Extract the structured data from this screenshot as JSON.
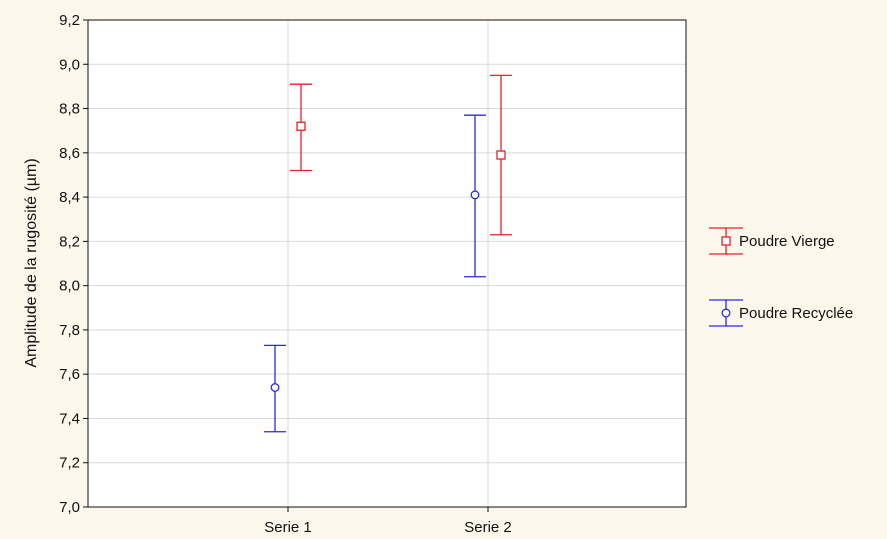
{
  "chart_data": {
    "type": "errorbar",
    "title": "",
    "xlabel": "",
    "ylabel": "Amplitude de la rugosité (µm)",
    "categories": [
      "Serie 1",
      "Serie 2"
    ],
    "ylim": [
      7.0,
      9.2
    ],
    "yticks": [
      "7,0",
      "7,2",
      "7,4",
      "7,6",
      "7,8",
      "8,0",
      "8,2",
      "8,4",
      "8,6",
      "8,8",
      "9,0",
      "9,2"
    ],
    "grid": true,
    "legend_position": "right",
    "series": [
      {
        "name": "Poudre Vierge",
        "color": "#e8202a",
        "marker": "square",
        "values": [
          8.72,
          8.59
        ],
        "lower": [
          8.52,
          8.23
        ],
        "upper": [
          8.91,
          8.95
        ]
      },
      {
        "name": "Poudre Recyclée",
        "color": "#2b2bd8",
        "marker": "circle",
        "values": [
          7.54,
          8.41
        ],
        "lower": [
          7.34,
          8.04
        ],
        "upper": [
          7.73,
          8.77
        ]
      }
    ]
  }
}
